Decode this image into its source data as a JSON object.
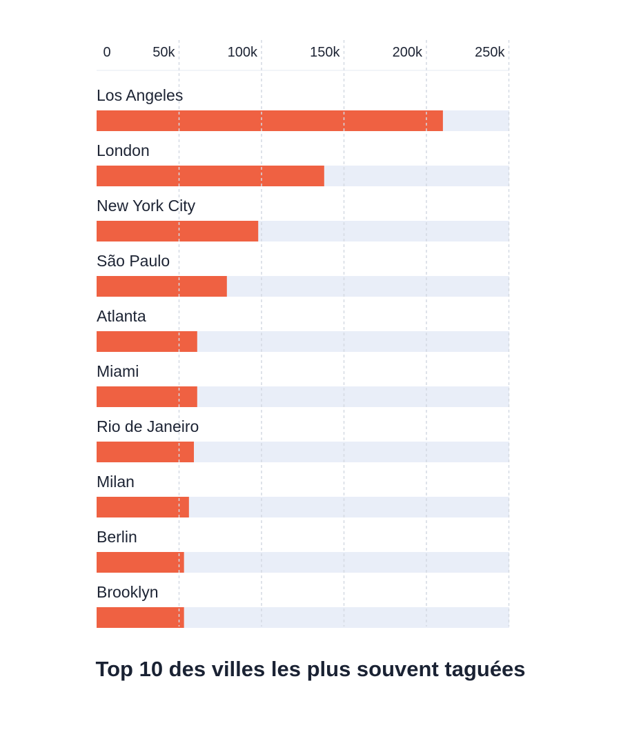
{
  "chart_data": {
    "type": "bar",
    "orientation": "horizontal",
    "title": "Top 10 des villes les plus souvent taguées",
    "xlabel": "",
    "ylabel": "",
    "xlim": [
      0,
      250000
    ],
    "x_ticks": [
      0,
      50000,
      100000,
      150000,
      200000,
      250000
    ],
    "x_tick_labels": [
      "0",
      "50k",
      "100k",
      "150k",
      "200k",
      "250k"
    ],
    "axis_position": "top",
    "grid": true,
    "categories": [
      "Los Angeles",
      "London",
      "New York City",
      "São Paulo",
      "Atlanta",
      "Miami",
      "Rio de Janeiro",
      "Milan",
      "Berlin",
      "Brooklyn"
    ],
    "values": [
      210000,
      138000,
      98000,
      79000,
      61000,
      61000,
      59000,
      56000,
      53000,
      53000
    ],
    "colors": {
      "bar": "#ef6142",
      "track": "#e9eef8",
      "grid": "#d4d9e2",
      "text": "#1c2333"
    }
  }
}
